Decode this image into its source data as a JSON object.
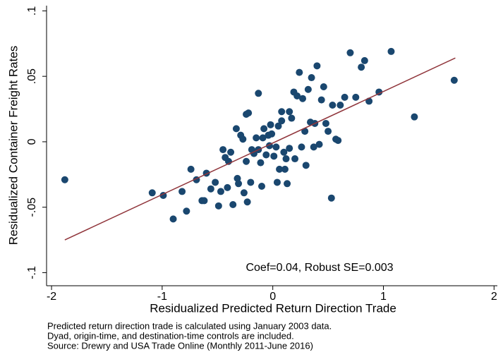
{
  "chart_data": {
    "type": "scatter",
    "x_label": "Residualized Predicted Return Direction Trade",
    "y_label": "Residualized Container Freight Rates",
    "annotation": "Coef=0.04, Robust SE=0.003",
    "notes": [
      "Predicted return direction trade is calculated using January 2003 data.",
      "Dyad, origin-time, and destination-time controls are included.",
      "Source: Drewry and USA Trade Online (Monthly 2011-June 2016)"
    ],
    "color": "#1a476f",
    "x": [
      -1.88,
      -1.09,
      -0.99,
      -0.9,
      -0.82,
      -0.78,
      -0.74,
      -0.69,
      -0.64,
      -0.62,
      -0.6,
      -0.56,
      -0.52,
      -0.49,
      -0.47,
      -0.45,
      -0.43,
      -0.41,
      -0.4,
      -0.38,
      -0.36,
      -0.33,
      -0.32,
      -0.31,
      -0.29,
      -0.27,
      -0.26,
      -0.24,
      -0.24,
      -0.22,
      -0.23,
      -0.2,
      -0.19,
      -0.17,
      -0.15,
      -0.13,
      -0.13,
      -0.11,
      -0.1,
      -0.09,
      -0.08,
      -0.06,
      -0.04,
      -0.03,
      -0.02,
      -0.01,
      0.01,
      0.03,
      0.04,
      0.05,
      0.06,
      0.08,
      0.08,
      0.1,
      0.11,
      0.12,
      0.13,
      0.15,
      0.15,
      0.17,
      0.19,
      0.2,
      0.22,
      0.24,
      0.26,
      0.27,
      0.29,
      0.3,
      0.32,
      0.34,
      0.35,
      0.37,
      0.38,
      0.4,
      0.42,
      0.44,
      0.46,
      0.48,
      0.5,
      0.53,
      0.54,
      0.57,
      0.59,
      0.61,
      0.65,
      0.7,
      0.75,
      0.8,
      0.83,
      0.87,
      0.96,
      1.07,
      1.28,
      1.64
    ],
    "values": [
      -0.029,
      -0.039,
      -0.041,
      -0.059,
      -0.038,
      -0.053,
      -0.021,
      -0.029,
      -0.045,
      -0.045,
      -0.024,
      -0.036,
      -0.031,
      -0.049,
      -0.038,
      -0.006,
      -0.012,
      -0.035,
      -0.015,
      -0.008,
      -0.048,
      0.01,
      -0.028,
      -0.032,
      0.005,
      0.002,
      -0.039,
      -0.015,
      0.021,
      0.022,
      -0.046,
      -0.031,
      -0.006,
      -0.009,
      0.003,
      0.037,
      -0.006,
      -0.016,
      -0.034,
      0.003,
      0.01,
      -0.01,
      0.005,
      -0.003,
      0.013,
      0.006,
      -0.011,
      -0.004,
      -0.031,
      0.012,
      -0.021,
      0.016,
      0.023,
      -0.008,
      -0.021,
      -0.013,
      -0.032,
      0.023,
      -0.005,
      0.018,
      0.038,
      -0.013,
      0.035,
      0.053,
      -0.004,
      0.033,
      0.008,
      -0.018,
      0.04,
      0.015,
      0.049,
      -0.004,
      0.014,
      0.058,
      -0.002,
      0.032,
      0.042,
      0.014,
      0.008,
      -0.043,
      0.028,
      0.002,
      0.001,
      0.028,
      0.034,
      0.068,
      0.034,
      0.057,
      0.062,
      0.031,
      0.038,
      0.069,
      0.019,
      0.047
    ],
    "fit_line": {
      "color": "#90353b",
      "x": [
        -1.88,
        1.65
      ],
      "values": [
        -0.075,
        0.064
      ]
    },
    "xlim": [
      -2.045,
      2.03
    ],
    "ylim": [
      -0.11,
      0.104
    ],
    "xticks": [
      -2,
      -1,
      0,
      1,
      2
    ],
    "yticks": [
      {
        "value": -0.1,
        "label": "-.1"
      },
      {
        "value": -0.05,
        "label": "-.05"
      },
      0,
      {
        "value": 0.05,
        "label": ".05"
      },
      {
        "value": 0.1,
        "label": ".1"
      }
    ],
    "grid": false
  }
}
